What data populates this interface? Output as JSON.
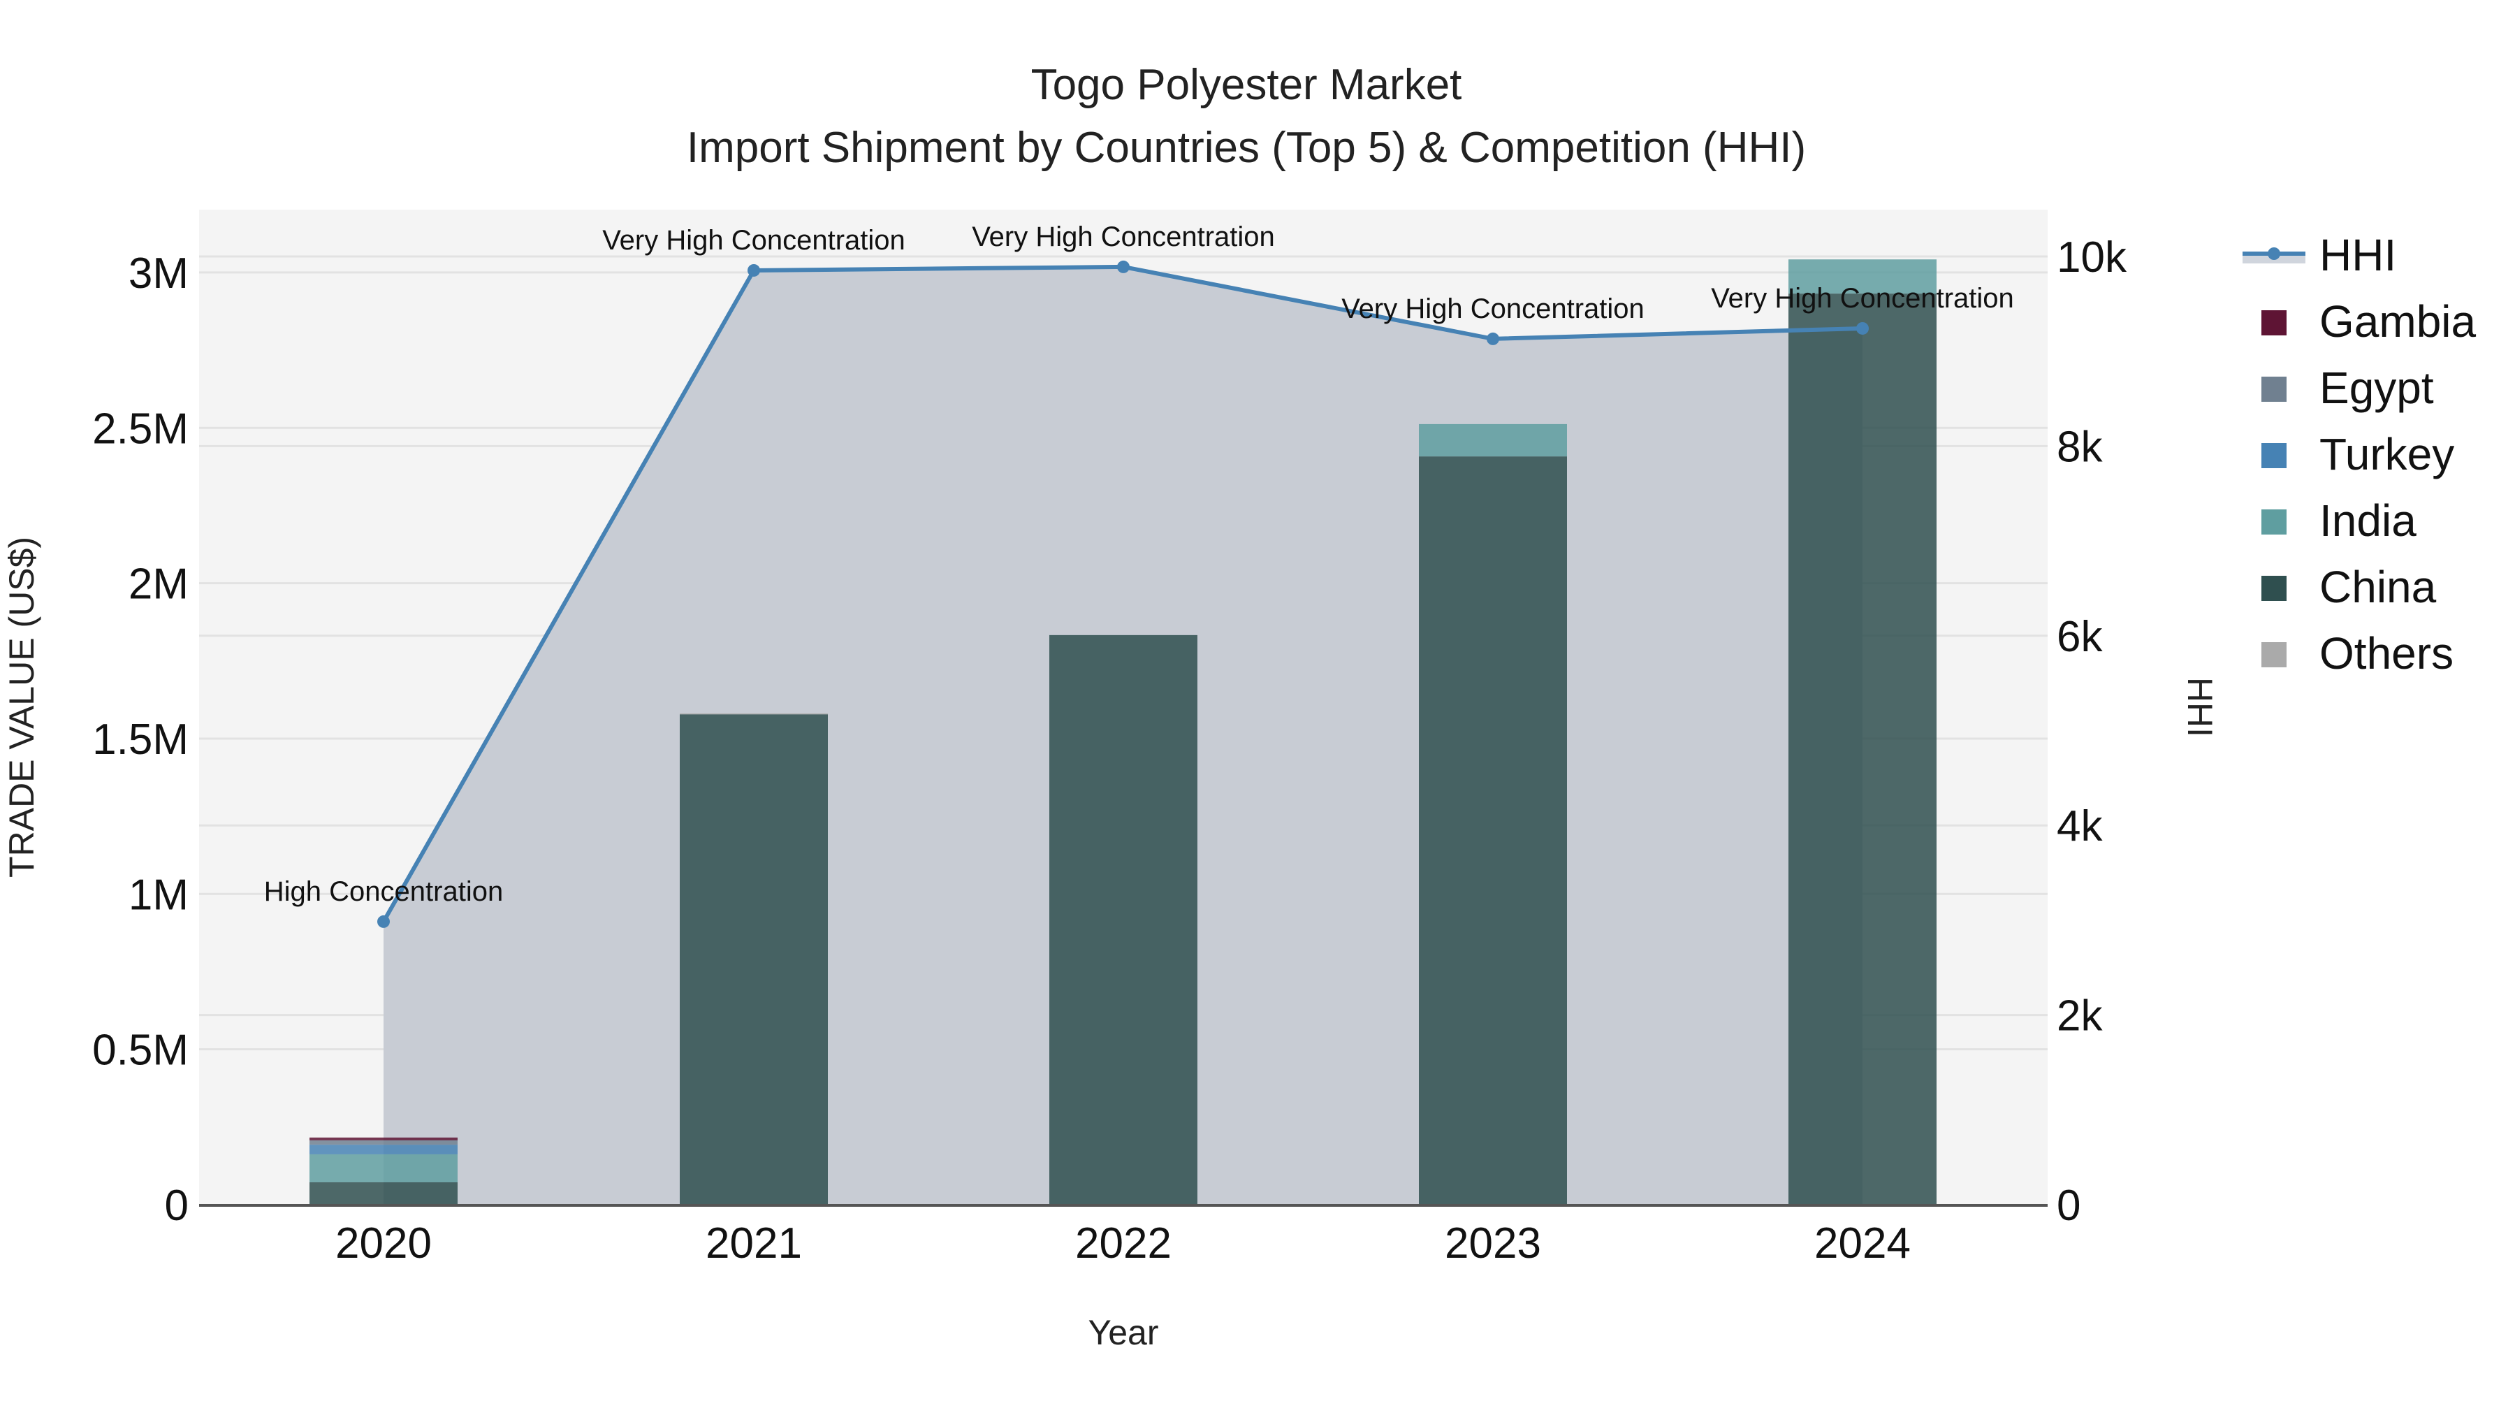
{
  "title": {
    "line1": "Togo Polyester Market",
    "line2": "Import Shipment by Countries (Top 5) & Competition (HHI)"
  },
  "axes": {
    "x_title": "Year",
    "y_left_title": "TRADE VALUE (US$)",
    "y_right_title": "HHI",
    "y_left_ticks": [
      "0",
      "0.5M",
      "1M",
      "1.5M",
      "2M",
      "2.5M",
      "3M"
    ],
    "y_right_ticks": [
      "0",
      "2k",
      "4k",
      "6k",
      "8k",
      "10k"
    ],
    "x_ticks": [
      "2020",
      "2021",
      "2022",
      "2023",
      "2024"
    ]
  },
  "legend": {
    "items": [
      {
        "label": "HHI",
        "type": "line",
        "color": "#4682b4"
      },
      {
        "label": "Gambia",
        "type": "box",
        "color": "#5e1434"
      },
      {
        "label": "Egypt",
        "type": "box",
        "color": "#708090"
      },
      {
        "label": "Turkey",
        "type": "box",
        "color": "#4682b4"
      },
      {
        "label": "India",
        "type": "box",
        "color": "#5f9ea0"
      },
      {
        "label": "China",
        "type": "box",
        "color": "#2f4f4f"
      },
      {
        "label": "Others",
        "type": "box",
        "color": "#aaaaaa"
      }
    ]
  },
  "colors": {
    "plot_bg": "#f4f4f4",
    "grid": "#e2e2e2",
    "hhi_line": "#4682b4",
    "hhi_fill": "rgba(176,186,200,0.6)",
    "axis_line": "#555555"
  },
  "chart_data": {
    "type": "bar",
    "title": "Togo Polyester Market — Import Shipment by Countries (Top 5) & Competition (HHI)",
    "xlabel": "Year",
    "ylabel": "TRADE VALUE (US$)",
    "y2label": "HHI",
    "ylim": [
      0,
      3200000
    ],
    "y2lim": [
      0,
      10500
    ],
    "barmode": "stack",
    "grid": true,
    "legend_position": "right",
    "categories": [
      "2020",
      "2021",
      "2022",
      "2023",
      "2024"
    ],
    "series": [
      {
        "name": "China",
        "color": "#2f4f4f",
        "values": [
          72000,
          1578000,
          1833000,
          2408000,
          2932000
        ]
      },
      {
        "name": "India",
        "color": "#5f9ea0",
        "values": [
          90000,
          0,
          0,
          104000,
          110000
        ]
      },
      {
        "name": "Turkey",
        "color": "#4682b4",
        "values": [
          31000,
          0,
          0,
          0,
          0
        ]
      },
      {
        "name": "Egypt",
        "color": "#708090",
        "values": [
          14000,
          0,
          0,
          0,
          0
        ]
      },
      {
        "name": "Gambia",
        "color": "#5e1434",
        "values": [
          9000,
          0,
          0,
          0,
          0
        ]
      },
      {
        "name": "Others",
        "color": "#aaaaaa",
        "values": [
          0,
          3000,
          0,
          0,
          0
        ]
      }
    ],
    "line_series": {
      "name": "HHI",
      "axis": "y2",
      "color": "#4682b4",
      "fill": "tozeroy",
      "values": [
        2985,
        9853,
        9890,
        9131,
        9241
      ],
      "annotations": [
        "High Concentration",
        "Very High Concentration",
        "Very High Concentration",
        "Very High Concentration",
        "Very High Concentration"
      ]
    }
  }
}
